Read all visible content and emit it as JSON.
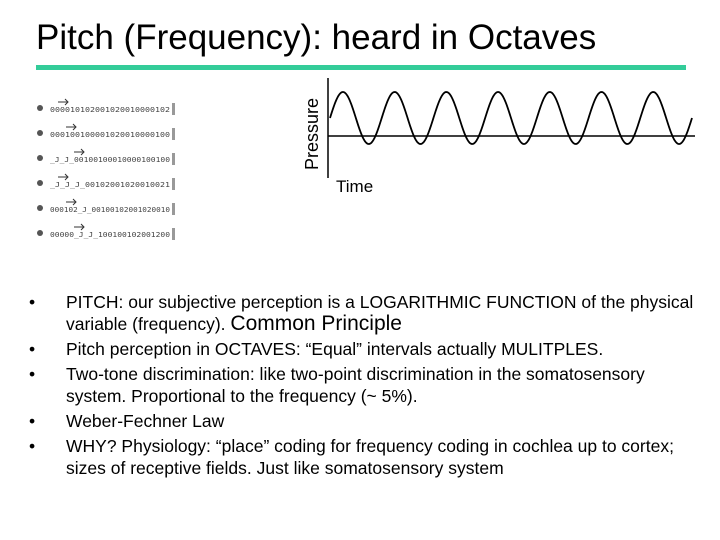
{
  "slide": {
    "title": "Pitch (Frequency): heard in Octaves",
    "accent_color": "#33cc99"
  },
  "figure": {
    "ylabel": "Pressure",
    "xlabel": "Time",
    "wave_cycles": 7,
    "scope_rows": [
      "000010102001020010000102",
      "000100100001020010000100",
      "_J_J_00100100010000100100",
      "_J_J_J_00102001020010021",
      "000102_J_00100102001020010",
      "00000_J_J_100100102001200"
    ]
  },
  "bullets": [
    {
      "symbol": "•",
      "text": "PITCH: our subjective perception is a LOGARITHMIC FUNCTION of the physical variable (frequency).",
      "emphasis": "Common Principle"
    },
    {
      "symbol": "•",
      "text": "Pitch perception in OCTAVES: “Equal” intervals actually MULITPLES."
    },
    {
      "symbol": "•",
      "text": "Two-tone discrimination: like two-point discrimination in the somatosensory system. Proportional to the frequency (~ 5%)."
    },
    {
      "symbol": "•",
      "text": "Weber-Fechner Law"
    },
    {
      "symbol": "•",
      "text": "WHY? Physiology: “place” coding for frequency coding in cochlea up to cortex; sizes of receptive fields. Just like somatosensory system"
    }
  ]
}
